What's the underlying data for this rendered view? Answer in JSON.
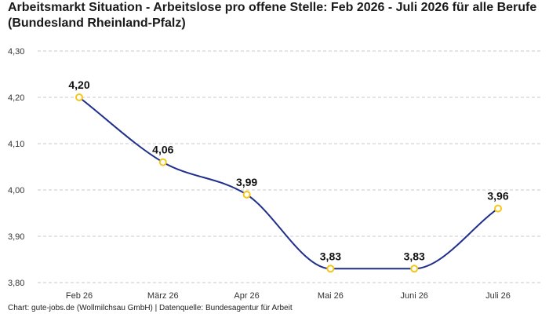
{
  "chart_data": {
    "type": "line",
    "title": "Arbeitsmarkt Situation - Arbeitslose pro offene Stelle: Feb 2026 - Juli 2026 für alle Berufe (Bundesland Rheinland-Pfalz)",
    "categories": [
      "Feb 26",
      "März 26",
      "Apr 26",
      "Mai 26",
      "Juni 26",
      "Juli 26"
    ],
    "series": [
      {
        "values": [
          4.2,
          4.06,
          3.99,
          3.83,
          3.83,
          3.96
        ],
        "labels": [
          "4,20",
          "4,06",
          "3,99",
          "3,83",
          "3,83",
          "3,96"
        ]
      }
    ],
    "yticks": [
      "3,80",
      "3,90",
      "4,00",
      "4,10",
      "4,20",
      "4,30"
    ],
    "ylim": [
      3.8,
      4.3
    ],
    "ystep": 0.1,
    "xlabel": "",
    "ylabel": "",
    "grid": true,
    "colors": {
      "line": "#1f2f8c",
      "marker": "#f5c518",
      "grid": "#c8c8c8"
    }
  },
  "footer": "Chart: gute-jobs.de (Wollmilchsau GmbH) | Datenquelle: Bundesagentur für Arbeit"
}
